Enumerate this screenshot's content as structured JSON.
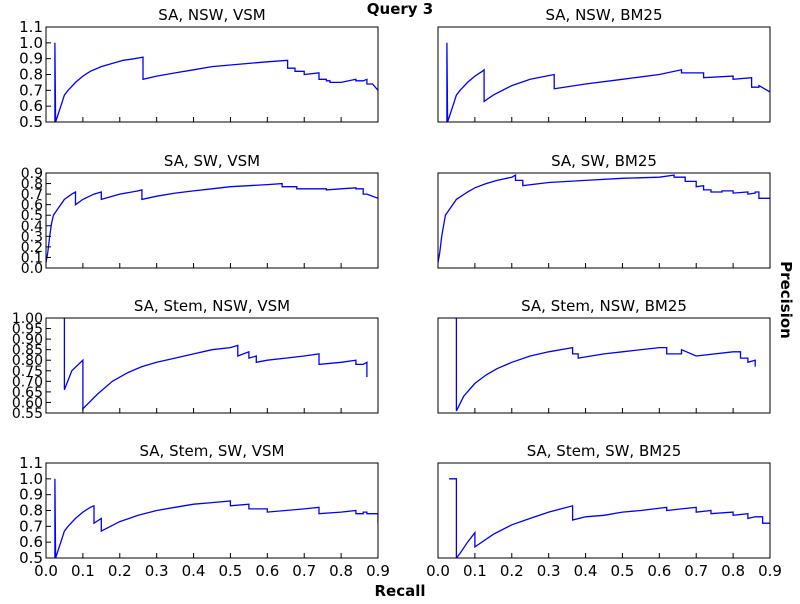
{
  "suptitle": "Query 3",
  "xlabel": "Recall",
  "ylabel": "Precision",
  "x_ticks": [
    "0.0",
    "0.1",
    "0.2",
    "0.3",
    "0.4",
    "0.5",
    "0.6",
    "0.7",
    "0.8",
    "0.9"
  ],
  "line_color": "#0000ff",
  "chart_data": [
    {
      "type": "line",
      "title": "SA, NSW, VSM",
      "xlim": [
        0,
        0.9
      ],
      "ylim": [
        0.5,
        1.1
      ],
      "y_ticks": [
        "0.5",
        "0.6",
        "0.7",
        "0.8",
        "0.9",
        "1.0",
        "1.1"
      ],
      "series": [
        {
          "x": [
            0.024,
            0.024,
            0.026,
            0.04,
            0.05,
            0.06,
            0.08,
            0.1,
            0.12,
            0.15,
            0.18,
            0.21,
            0.24,
            0.263,
            0.263,
            0.3,
            0.35,
            0.4,
            0.45,
            0.5,
            0.55,
            0.6,
            0.655,
            0.655,
            0.675,
            0.675,
            0.7,
            0.7,
            0.74,
            0.74,
            0.76,
            0.76,
            0.77,
            0.77,
            0.8,
            0.84,
            0.84,
            0.86,
            0.87,
            0.87,
            0.885,
            0.9
          ],
          "y": [
            0.5,
            1.0,
            0.5,
            0.6,
            0.67,
            0.7,
            0.75,
            0.79,
            0.82,
            0.85,
            0.87,
            0.89,
            0.9,
            0.91,
            0.77,
            0.79,
            0.81,
            0.83,
            0.85,
            0.86,
            0.87,
            0.88,
            0.89,
            0.84,
            0.84,
            0.82,
            0.82,
            0.8,
            0.81,
            0.77,
            0.77,
            0.76,
            0.76,
            0.75,
            0.75,
            0.77,
            0.76,
            0.76,
            0.77,
            0.74,
            0.74,
            0.7
          ]
        }
      ]
    },
    {
      "type": "line",
      "title": "SA, NSW, BM25",
      "xlim": [
        0,
        0.9
      ],
      "ylim": [
        0.5,
        1.1
      ],
      "y_ticks": [],
      "series": [
        {
          "x": [
            0.024,
            0.024,
            0.026,
            0.04,
            0.05,
            0.06,
            0.08,
            0.1,
            0.12,
            0.125,
            0.125,
            0.15,
            0.2,
            0.25,
            0.315,
            0.315,
            0.4,
            0.5,
            0.6,
            0.66,
            0.66,
            0.72,
            0.72,
            0.8,
            0.8,
            0.85,
            0.85,
            0.87,
            0.87,
            0.9
          ],
          "y": [
            0.5,
            1.0,
            0.5,
            0.6,
            0.67,
            0.7,
            0.75,
            0.79,
            0.82,
            0.83,
            0.63,
            0.67,
            0.73,
            0.77,
            0.8,
            0.71,
            0.74,
            0.77,
            0.8,
            0.83,
            0.81,
            0.81,
            0.78,
            0.79,
            0.77,
            0.78,
            0.72,
            0.72,
            0.73,
            0.69
          ]
        }
      ]
    },
    {
      "type": "line",
      "title": "SA, SW, VSM",
      "xlim": [
        0,
        0.9
      ],
      "ylim": [
        0.0,
        0.9
      ],
      "y_ticks": [
        "0.0",
        "0.1",
        "0.2",
        "0.3",
        "0.4",
        "0.5",
        "0.6",
        "0.7",
        "0.8",
        "0.9"
      ],
      "series": [
        {
          "x": [
            0,
            0.005,
            0.01,
            0.015,
            0.02,
            0.03,
            0.05,
            0.07,
            0.08,
            0.08,
            0.1,
            0.13,
            0.15,
            0.15,
            0.2,
            0.25,
            0.26,
            0.26,
            0.3,
            0.35,
            0.4,
            0.45,
            0.5,
            0.55,
            0.6,
            0.64,
            0.64,
            0.68,
            0.68,
            0.76,
            0.76,
            0.8,
            0.84,
            0.84,
            0.86,
            0.86,
            0.87,
            0.87,
            0.9
          ],
          "y": [
            0.05,
            0.15,
            0.3,
            0.42,
            0.5,
            0.55,
            0.65,
            0.7,
            0.72,
            0.6,
            0.65,
            0.7,
            0.72,
            0.65,
            0.7,
            0.73,
            0.74,
            0.65,
            0.68,
            0.71,
            0.73,
            0.75,
            0.77,
            0.78,
            0.79,
            0.8,
            0.77,
            0.77,
            0.75,
            0.75,
            0.74,
            0.75,
            0.76,
            0.75,
            0.75,
            0.7,
            0.7,
            0.7,
            0.66
          ]
        }
      ]
    },
    {
      "type": "line",
      "title": "SA, SW, BM25",
      "xlim": [
        0,
        0.9
      ],
      "ylim": [
        0.0,
        0.9
      ],
      "y_ticks": [],
      "series": [
        {
          "x": [
            0,
            0.005,
            0.01,
            0.02,
            0.03,
            0.05,
            0.08,
            0.1,
            0.13,
            0.16,
            0.2,
            0.21,
            0.21,
            0.23,
            0.23,
            0.3,
            0.4,
            0.5,
            0.6,
            0.64,
            0.64,
            0.67,
            0.67,
            0.7,
            0.7,
            0.72,
            0.72,
            0.74,
            0.74,
            0.77,
            0.77,
            0.8,
            0.8,
            0.84,
            0.84,
            0.86,
            0.86,
            0.87,
            0.87,
            0.9
          ],
          "y": [
            0.05,
            0.15,
            0.3,
            0.5,
            0.55,
            0.65,
            0.72,
            0.76,
            0.8,
            0.83,
            0.86,
            0.88,
            0.83,
            0.83,
            0.78,
            0.81,
            0.83,
            0.85,
            0.86,
            0.88,
            0.86,
            0.86,
            0.82,
            0.82,
            0.77,
            0.78,
            0.74,
            0.74,
            0.72,
            0.72,
            0.73,
            0.73,
            0.71,
            0.72,
            0.7,
            0.71,
            0.72,
            0.72,
            0.66,
            0.66
          ]
        }
      ]
    },
    {
      "type": "line",
      "title": "SA, Stem, NSW, VSM",
      "xlim": [
        0,
        0.9
      ],
      "ylim": [
        0.55,
        1.0
      ],
      "y_ticks": [
        "0.55",
        "0.60",
        "0.65",
        "0.70",
        "0.75",
        "0.80",
        "0.85",
        "0.90",
        "0.95",
        "1.00"
      ],
      "series": [
        {
          "x": [
            0.05,
            0.05,
            0.05,
            0.07,
            0.1,
            0.1,
            0.1,
            0.14,
            0.18,
            0.22,
            0.26,
            0.3,
            0.35,
            0.4,
            0.45,
            0.5,
            0.52,
            0.52,
            0.55,
            0.55,
            0.57,
            0.57,
            0.6,
            0.65,
            0.7,
            0.74,
            0.74,
            0.8,
            0.84,
            0.84,
            0.86,
            0.87,
            0.87
          ],
          "y": [
            1.0,
            0.66,
            0.66,
            0.75,
            0.8,
            0.56,
            0.57,
            0.64,
            0.7,
            0.74,
            0.77,
            0.79,
            0.81,
            0.83,
            0.85,
            0.86,
            0.87,
            0.82,
            0.84,
            0.81,
            0.82,
            0.79,
            0.8,
            0.81,
            0.82,
            0.83,
            0.78,
            0.79,
            0.8,
            0.78,
            0.78,
            0.79,
            0.72
          ]
        }
      ]
    },
    {
      "type": "line",
      "title": "SA, Stem, NSW, BM25",
      "xlim": [
        0,
        0.9
      ],
      "ylim": [
        0.55,
        1.0
      ],
      "y_ticks": [],
      "series": [
        {
          "x": [
            0.045,
            0.05,
            0.05,
            0.07,
            0.1,
            0.13,
            0.16,
            0.2,
            0.25,
            0.3,
            0.365,
            0.365,
            0.38,
            0.38,
            0.45,
            0.5,
            0.6,
            0.62,
            0.62,
            0.66,
            0.66,
            0.7,
            0.8,
            0.82,
            0.82,
            0.84,
            0.84,
            0.86,
            0.86
          ],
          "y": [
            1.0,
            1.0,
            0.56,
            0.63,
            0.69,
            0.73,
            0.76,
            0.79,
            0.82,
            0.84,
            0.86,
            0.83,
            0.83,
            0.81,
            0.83,
            0.84,
            0.86,
            0.86,
            0.83,
            0.83,
            0.85,
            0.82,
            0.84,
            0.84,
            0.81,
            0.81,
            0.79,
            0.8,
            0.77
          ]
        }
      ]
    },
    {
      "type": "line",
      "title": "SA, Stem, SW, VSM",
      "xlim": [
        0,
        0.9
      ],
      "ylim": [
        0.5,
        1.1
      ],
      "y_ticks": [
        "0.5",
        "0.6",
        "0.7",
        "0.8",
        "0.9",
        "1.0",
        "1.1"
      ],
      "series": [
        {
          "x": [
            0.024,
            0.024,
            0.026,
            0.04,
            0.05,
            0.06,
            0.08,
            0.1,
            0.12,
            0.13,
            0.13,
            0.15,
            0.15,
            0.2,
            0.25,
            0.3,
            0.35,
            0.4,
            0.45,
            0.5,
            0.5,
            0.55,
            0.55,
            0.6,
            0.6,
            0.7,
            0.74,
            0.74,
            0.8,
            0.84,
            0.84,
            0.86,
            0.86,
            0.87,
            0.87,
            0.9,
            0.9
          ],
          "y": [
            0.5,
            1.0,
            0.5,
            0.6,
            0.67,
            0.7,
            0.75,
            0.79,
            0.82,
            0.83,
            0.72,
            0.75,
            0.67,
            0.73,
            0.77,
            0.8,
            0.82,
            0.84,
            0.85,
            0.86,
            0.83,
            0.84,
            0.81,
            0.81,
            0.79,
            0.81,
            0.82,
            0.78,
            0.79,
            0.8,
            0.78,
            0.78,
            0.79,
            0.79,
            0.78,
            0.78,
            0.72
          ]
        }
      ]
    },
    {
      "type": "line",
      "title": "SA, Stem, SW, BM25",
      "xlim": [
        0,
        0.9
      ],
      "ylim": [
        0.5,
        1.1
      ],
      "y_ticks": [],
      "series": [
        {
          "x": [
            0.03,
            0.05,
            0.05,
            0.06,
            0.08,
            0.1,
            0.1,
            0.15,
            0.2,
            0.25,
            0.3,
            0.365,
            0.365,
            0.4,
            0.45,
            0.5,
            0.55,
            0.62,
            0.62,
            0.66,
            0.7,
            0.7,
            0.74,
            0.74,
            0.8,
            0.8,
            0.84,
            0.84,
            0.86,
            0.86,
            0.88,
            0.88,
            0.9
          ],
          "y": [
            1.0,
            1.0,
            0.5,
            0.53,
            0.6,
            0.66,
            0.57,
            0.65,
            0.71,
            0.75,
            0.79,
            0.83,
            0.74,
            0.76,
            0.77,
            0.79,
            0.8,
            0.82,
            0.8,
            0.81,
            0.82,
            0.79,
            0.8,
            0.78,
            0.79,
            0.77,
            0.78,
            0.75,
            0.76,
            0.76,
            0.76,
            0.72,
            0.72
          ]
        }
      ]
    }
  ]
}
